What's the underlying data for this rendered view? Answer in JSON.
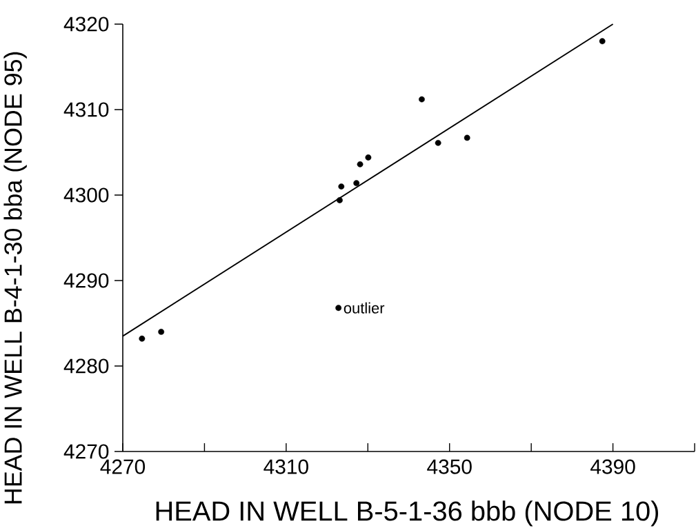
{
  "chart_data": {
    "type": "scatter",
    "xlabel": "HEAD IN WELL  B-5-1-36 bbb (NODE 10)",
    "ylabel": "HEAD IN WELL  B-4-1-30 bba (NODE 95)",
    "xlim": [
      4270,
      4410
    ],
    "ylim": [
      4270,
      4320
    ],
    "xticks": [
      4270,
      {
        "value": 4290,
        "label": null
      },
      4310,
      {
        "value": 4330,
        "label": null
      },
      4350,
      {
        "value": 4370,
        "label": null
      },
      4390,
      {
        "value": 4410,
        "label": null
      }
    ],
    "yticks": [
      4270,
      4280,
      4290,
      4300,
      4310,
      4320
    ],
    "series": [
      {
        "color": "#000000",
        "marker": "circle",
        "x": [
          4274.7,
          4279.4,
          4322.8,
          4323.1,
          4323.5,
          4327.2,
          4328.1,
          4330.1,
          4343.2,
          4347.2,
          4354.3,
          4387.4
        ],
        "values": [
          4283.2,
          4284.0,
          4286.8,
          4299.4,
          4301.0,
          4301.4,
          4303.6,
          4304.4,
          4311.2,
          4306.1,
          4306.7,
          4318.0
        ]
      },
      {
        "type": "line",
        "color": "#000000",
        "marker": "none",
        "line_style": "solid",
        "x": [
          4270,
          4390
        ],
        "values": [
          4283.5,
          4320
        ]
      }
    ],
    "annotations": [
      {
        "text": "outlier",
        "x": 4322.8,
        "y": 4286.8
      }
    ]
  }
}
